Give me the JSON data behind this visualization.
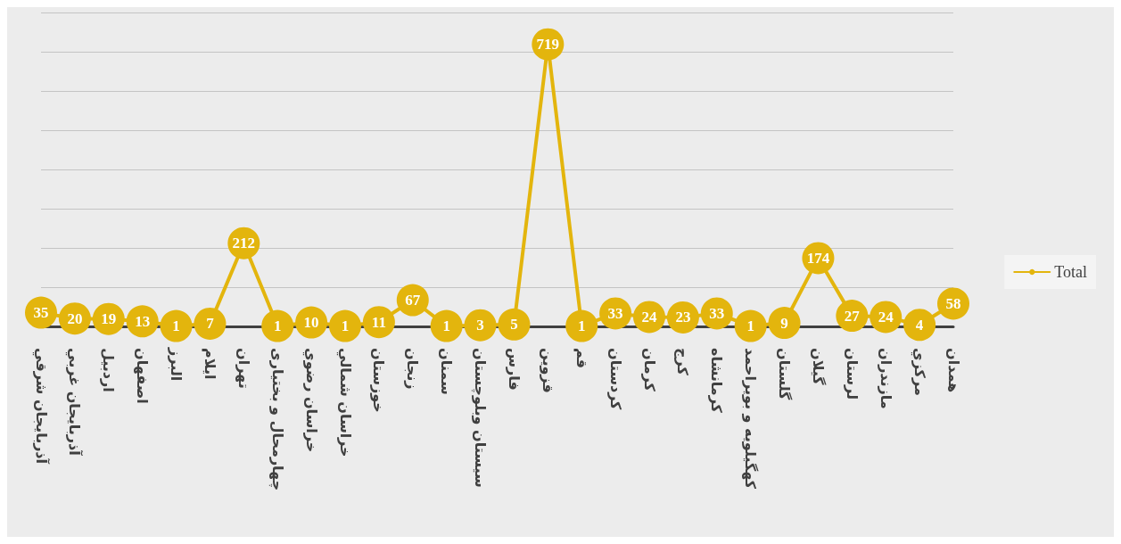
{
  "chart_data": {
    "type": "line",
    "categories": [
      "آذربایجان شرقي",
      "آذربایجان غربي",
      "اردبیل",
      "اصفهان",
      "البرز",
      "ایلام",
      "تهران",
      "چهارمحال و بختیاری",
      "خراسان رضوي",
      "خراسان شمالي",
      "خوزستان",
      "زنجان",
      "سمنان",
      "سیستان وبلوچستان",
      "فارس",
      "قزوین",
      "قم",
      "کردستان",
      "کرمان",
      "کرج",
      "کرمانشاه",
      "کهگیلویه و بویراحمد",
      "گلستان",
      "گیلان",
      "لرستان",
      "مازندران",
      "مرکزي",
      "همدان"
    ],
    "series": [
      {
        "name": "Total",
        "color": "#e3b50d",
        "values": [
          35,
          20,
          19,
          13,
          1,
          7,
          212,
          1,
          10,
          1,
          11,
          67,
          1,
          3,
          5,
          719,
          1,
          33,
          24,
          23,
          33,
          1,
          9,
          174,
          27,
          24,
          4,
          58
        ]
      }
    ],
    "ylim": [
      0,
      800
    ],
    "yticks": [
      {
        "value": 0,
        "label": null
      },
      {
        "value": 100,
        "label": null
      },
      {
        "value": 200,
        "label": null
      },
      {
        "value": 300,
        "label": null
      },
      {
        "value": 400,
        "label": null
      },
      {
        "value": 500,
        "label": null
      },
      {
        "value": 600,
        "label": null
      },
      {
        "value": 700,
        "label": null
      },
      {
        "value": 800,
        "label": null
      }
    ],
    "tick_labels": "x",
    "grid": "y",
    "legend": "right",
    "marker": "circle",
    "line_style": "solid",
    "data_labels": true
  }
}
